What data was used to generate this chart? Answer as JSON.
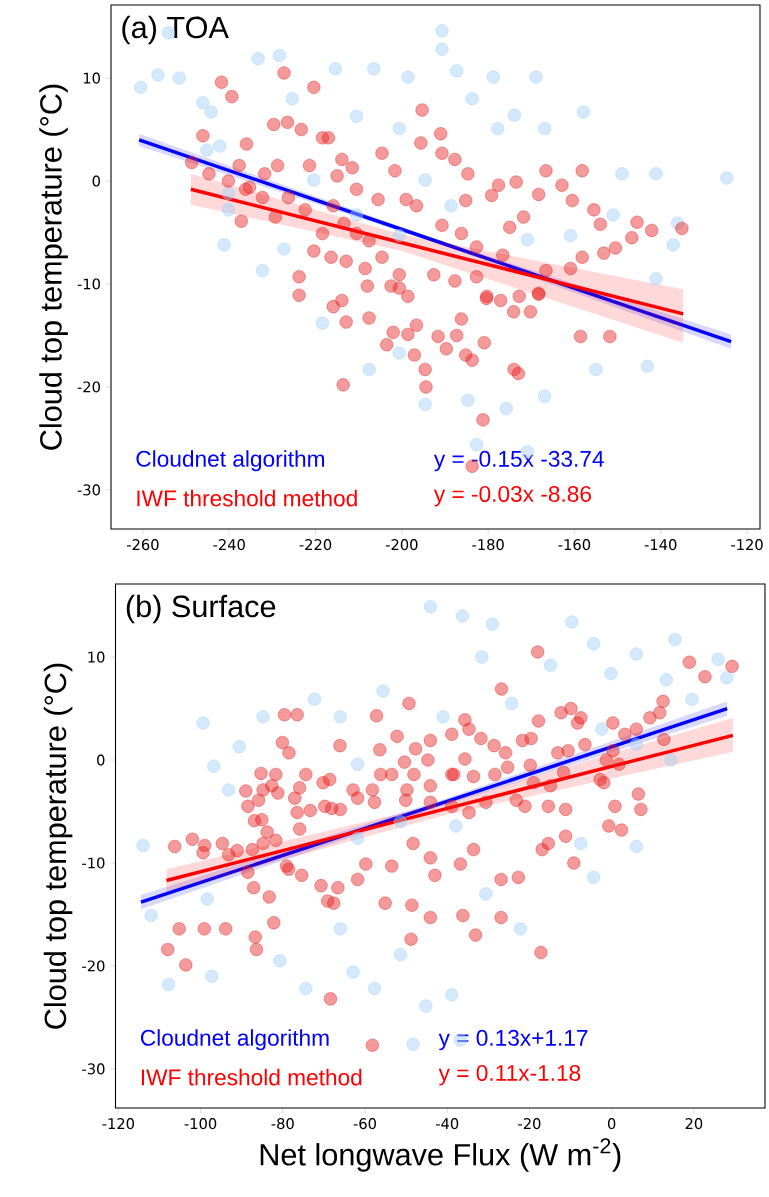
{
  "chart_data": [
    {
      "type": "scatter",
      "title": "(a) TOA",
      "ylabel": "Cloud top temperature (°C)",
      "xlim": [
        -267.4,
        -117
      ],
      "ylim": [
        -33.8,
        17.1
      ],
      "xticks": [
        -260,
        -240,
        -220,
        -200,
        -180,
        -160,
        -140,
        -120
      ],
      "yticks": [
        -30,
        -20,
        -10,
        0,
        10
      ],
      "grid": false,
      "legend": "bottom left",
      "line_style": "solid",
      "annotations": [
        "y = -0.15x -33.74",
        "y = -0.03x -8.86"
      ],
      "series": [
        {
          "marker": "circle",
          "color": "#a0cff8",
          "x": [
            -260.5,
            -256.5,
            -251.6,
            -254.1,
            -244.2,
            -242.2,
            -233.3,
            -228.4,
            -215.4,
            -206.5,
            -198.6,
            -190.7,
            -190.7,
            -187.3,
            -178.8,
            -168.9,
            -183.7,
            -173.9,
            -157.9,
            -166.9,
            -149.0,
            -141.1,
            -124.7,
            -136.1,
            -137.1,
            -141.1,
            -151.0,
            -177.8,
            -200.6,
            -210.5,
            -225.4,
            -246.1,
            -245.2,
            -240.2,
            -240.2,
            -241.2,
            -232.3,
            -227.3,
            -220.4,
            -210.5,
            -200.6,
            -194.6,
            -188.6,
            -170.9,
            -160.9,
            -218.4,
            -207.6,
            -194.6,
            -184.7,
            -175.8,
            -166.9,
            -182.7,
            -155.0,
            -143.1,
            -200.6,
            -170.9
          ],
          "values": [
            9.1,
            10.3,
            10.0,
            14.4,
            6.7,
            3.4,
            11.9,
            12.2,
            10.9,
            10.9,
            10.1,
            14.6,
            12.8,
            10.7,
            10.1,
            10.1,
            8.0,
            6.4,
            6.7,
            5.1,
            0.7,
            0.7,
            0.3,
            -4.1,
            -6.2,
            -9.5,
            -3.3,
            5.1,
            5.1,
            6.3,
            8.0,
            7.6,
            3.0,
            -1.2,
            -2.8,
            -6.2,
            -8.7,
            -6.6,
            0.1,
            -3.3,
            -5.3,
            0.1,
            -2.4,
            -5.7,
            -5.3,
            -13.8,
            -18.3,
            -21.7,
            -21.3,
            -22.1,
            -20.9,
            -25.6,
            -18.3,
            -18.0,
            -16.7,
            -26.3
          ]
        },
        {
          "marker": "circle",
          "color": "#e61e1e",
          "x": [
            -227.3,
            -241.8,
            -239.4,
            -220.4,
            -195.3,
            -246.1,
            -229.7,
            -226.5,
            -223.3,
            -236.0,
            -218.4,
            -217.0,
            -195.6,
            -191.0,
            -204.6,
            -213.9,
            -190.7,
            -187.7,
            -166.6,
            -158.2,
            -184.7,
            -201.6,
            -173.5,
            -162.9,
            -177.6,
            -168.3,
            -185.2,
            -179.2,
            -160.5,
            -155.5,
            -154.0,
            -145.5,
            -142.1,
            -135.1,
            -146.7,
            -150.5,
            -153.2,
            -158.2,
            -160.9,
            -166.6,
            -171.8,
            -175.0,
            -176.6,
            -182.7,
            -186.2,
            -190.7,
            -196.6,
            -199.0,
            -205.5,
            -210.5,
            -211.5,
            -215.0,
            -221.4,
            -228.8,
            -231.8,
            -237.7,
            -244.7,
            -248.7,
            -240.2,
            -236.2,
            -232.3,
            -229.3,
            -226.3,
            -222.4,
            -218.4,
            -215.9,
            -213.4,
            -210.5,
            -207.6,
            -220.4,
            -216.4,
            -212.9,
            -208.5,
            -204.6,
            -200.6,
            -200.6,
            -198.6,
            -223.8,
            -223.8,
            -237.2,
            -235.3,
            -192.6,
            -187.7,
            -182.7,
            -180.3,
            -172.8,
            -168.3,
            -215.9,
            -213.9,
            -212.9,
            -207.6,
            -202.0,
            -203.5,
            -197.1,
            -194.6,
            -194.4,
            -213.6,
            -189.7,
            -185.2,
            -183.7,
            -180.9,
            -174.0,
            -173.0,
            -181.2,
            -183.7,
            -158.6,
            -151.8,
            -180.4,
            -177.1,
            -174.1,
            -170.2,
            -168.3,
            -196.6,
            -198.6,
            -191.6,
            -187.3,
            -186.2,
            -202.5,
            -208.0
          ],
          "values": [
            10.5,
            9.6,
            8.2,
            9.1,
            6.9,
            4.4,
            5.5,
            5.7,
            5.0,
            3.6,
            4.2,
            4.2,
            3.7,
            4.6,
            2.7,
            2.1,
            2.7,
            2.1,
            1.0,
            1.0,
            0.7,
            1.0,
            -0.1,
            -0.4,
            -0.4,
            -1.3,
            -1.9,
            -1.4,
            -1.9,
            -2.8,
            -4.2,
            -4.0,
            -4.8,
            -4.6,
            -5.5,
            -6.5,
            -7.0,
            -7.4,
            -8.5,
            -8.7,
            -3.5,
            -4.5,
            -7.2,
            -6.4,
            -5.1,
            -4.3,
            -2.4,
            -1.8,
            -1.8,
            -0.8,
            1.3,
            0.5,
            1.5,
            1.5,
            0.7,
            1.5,
            0.7,
            1.8,
            0.0,
            -0.8,
            -1.6,
            -3.5,
            -1.6,
            -2.8,
            -5.1,
            -2.4,
            -4.1,
            -5.1,
            -5.8,
            -6.8,
            -7.4,
            -7.8,
            -8.5,
            -7.4,
            -9.1,
            -10.4,
            -11.2,
            -9.3,
            -11.1,
            -3.9,
            -0.6,
            -9.1,
            -9.7,
            -9.3,
            -11.2,
            -11.2,
            -11.0,
            -12.2,
            -11.6,
            -13.7,
            -13.3,
            -14.7,
            -15.9,
            -16.9,
            -18.3,
            -20.0,
            -19.8,
            -16.3,
            -16.9,
            -17.4,
            -15.7,
            -18.3,
            -18.7,
            -23.2,
            -27.7,
            -15.1,
            -15.1,
            -11.4,
            -11.6,
            -12.7,
            -12.7,
            -10.9,
            -14.0,
            -14.9,
            -15.1,
            -15.0,
            -13.4,
            -10.2,
            -10.2
          ]
        },
        {
          "type": "line",
          "marker": "none",
          "name": "Cloudnet algorithm",
          "color": "#0000ff",
          "x": [
            -260.9,
            -192.3,
            -123.7
          ],
          "values": [
            4.0,
            -5.8,
            -15.6
          ],
          "lower": [
            3.4,
            -6.0,
            -16.3
          ],
          "upper": [
            4.6,
            -5.6,
            -14.9
          ]
        },
        {
          "type": "line",
          "marker": "none",
          "name": "IWF threshold method",
          "color": "#ff0000",
          "x": [
            -248.9,
            -200,
            -134.8
          ],
          "values": [
            -0.8,
            -6.0,
            -12.9
          ],
          "lower": [
            -2.3,
            -6.8,
            -15.7
          ],
          "upper": [
            0.7,
            -5.2,
            -10.5
          ]
        }
      ]
    },
    {
      "type": "scatter",
      "title": "(b) Surface",
      "xlabel": "Net longwave Flux (W m$^{-2}$)",
      "ylabel": "Cloud top temperature (°C)",
      "xlim": [
        -120.7,
        37.3
      ],
      "ylim": [
        -33.8,
        17.1
      ],
      "xticks": [
        -120,
        -100,
        -80,
        -60,
        -40,
        -20,
        0,
        20
      ],
      "yticks": [
        -30,
        -20,
        -10,
        0,
        10
      ],
      "grid": false,
      "legend": "bottom left",
      "line_style": "solid",
      "annotations": [
        "y = 0.13x+1.17",
        "y = 0.11x-1.18"
      ],
      "series": [
        {
          "marker": "circle",
          "color": "#a0cff8",
          "x": [
            -44.1,
            -36.3,
            -29.0,
            -9.7,
            -4.4,
            6.0,
            15.4,
            25.9,
            28.0,
            -31.6,
            -14.9,
            -0.2,
            13.3,
            -55.6,
            -72.3,
            -84.8,
            -99.4,
            -90.6,
            -96.8,
            -66.0,
            -41.0,
            -24.3,
            -2.4,
            6.0,
            19.5,
            14.4,
            -61.8,
            -93.2,
            -114.0,
            -112.0,
            -107.8,
            -98.4,
            -97.3,
            -80.7,
            -74.4,
            -62.9,
            -57.7,
            -51.4,
            -45.2,
            -38.9,
            -48.3,
            -36.8,
            -22.2,
            -4.4,
            6.0,
            -66.0,
            -30.6,
            -7.5,
            -51.4,
            -61.8,
            -37.9
          ],
          "values": [
            14.9,
            14.0,
            13.2,
            13.4,
            11.3,
            10.3,
            11.7,
            9.8,
            8.0,
            10.0,
            9.2,
            8.4,
            7.8,
            6.7,
            5.9,
            4.2,
            3.6,
            1.3,
            -0.6,
            4.2,
            4.2,
            5.5,
            3.0,
            1.5,
            5.9,
            0.0,
            -0.4,
            -2.9,
            -8.3,
            -15.1,
            -21.8,
            -13.5,
            -21.0,
            -19.5,
            -22.2,
            -20.6,
            -22.2,
            -18.9,
            -23.9,
            -22.8,
            -27.6,
            -27.2,
            -16.4,
            -11.4,
            -8.4,
            -16.4,
            -13.0,
            -8.1,
            -6.0,
            -7.6,
            -6.4
          ]
        },
        {
          "marker": "circle",
          "color": "#e61e1e",
          "x": [
            -18.0,
            18.9,
            22.7,
            29.3,
            -26.8,
            -49.3,
            -79.6,
            -76.5,
            -57.2,
            -17.8,
            -12.3,
            -9.9,
            -7.5,
            -8.3,
            0.3,
            9.3,
            11.7,
            12.5,
            12.7,
            6.0,
            3.2,
            0.3,
            1.8,
            -6.5,
            -10.6,
            -13.1,
            -19.6,
            -21.7,
            -35.7,
            -34.7,
            -38.9,
            -31.8,
            -28.6,
            -44.1,
            -47.7,
            -52.2,
            -56.4,
            -66.1,
            -80.1,
            -78.5,
            -44.7,
            -35.7,
            -25.8,
            -19.8,
            -25.3,
            -28.4,
            -33.6,
            -38.9,
            -48.1,
            -50.4,
            -53.5,
            -56.2,
            -74.4,
            -81.7,
            -85.3,
            -84.8,
            -82.7,
            -81.2,
            -89.0,
            -88.5,
            -85.9,
            -77.1,
            -75.9,
            -70.2,
            -68.6,
            -62.9,
            -58.2,
            -49.8,
            -44.1,
            -38.4,
            -19.0,
            -14.9,
            -11.7,
            -2.8,
            -1.9,
            -1.3,
            6.5,
            7.1,
            0.8,
            -11.2,
            -15.4,
            -21.1,
            -23.2,
            -30.6,
            -34.7,
            -38.9,
            -44.1,
            -50.1,
            -57.7,
            -61.8,
            -66.0,
            -69.8,
            -73.3,
            -106.3,
            -102.0,
            -99.0,
            -99.4,
            -94.7,
            -93.2,
            -91.1,
            -87.4,
            -84.8,
            -81.7,
            -86.9,
            -85.1,
            -83.8,
            -75.9,
            -76.5,
            -68.1,
            -88.5,
            -87.1,
            -83.3,
            -78.6,
            -79.1,
            -75.4,
            -70.7,
            -67.6,
            -69.1,
            -66.6,
            -59.8,
            -53.5,
            -61.8,
            -55.1,
            -48.6,
            -43.0,
            -36.8,
            -36.2,
            -26.9,
            -26.9,
            -22.7,
            -16.9,
            -11.2,
            -9.2,
            2.4,
            -0.7,
            -15.4,
            -33.6,
            -48.3,
            -44.1,
            -33.1,
            -44.1,
            -48.8,
            -17.2,
            -93.9,
            -99.1,
            -105.2,
            -108.0,
            -103.6,
            -86.4,
            -86.7,
            -82.2,
            -68.4,
            -58.2
          ],
          "values": [
            10.5,
            9.5,
            8.1,
            9.1,
            6.9,
            5.5,
            4.4,
            4.4,
            4.3,
            3.8,
            4.6,
            5.0,
            4.1,
            3.6,
            3.6,
            4.1,
            4.6,
            5.7,
            2.0,
            3.0,
            2.5,
            0.9,
            -0.4,
            1.5,
            0.9,
            0.7,
            2.1,
            1.9,
            3.9,
            3.0,
            2.5,
            2.1,
            1.4,
            1.9,
            1.1,
            2.3,
            1.0,
            1.4,
            1.7,
            0.7,
            0.0,
            0.1,
            0.7,
            -0.5,
            -0.7,
            -1.4,
            -1.6,
            -1.4,
            -1.4,
            -0.2,
            -1.4,
            -1.4,
            -1.4,
            -1.4,
            -1.3,
            -2.9,
            -2.5,
            -3.2,
            -3.0,
            -4.5,
            -3.9,
            -3.7,
            -2.7,
            -2.2,
            -1.9,
            -2.9,
            -2.9,
            -2.9,
            -2.5,
            -1.4,
            -2.2,
            -2.5,
            -1.2,
            -1.9,
            -2.2,
            0.0,
            -3.3,
            -4.8,
            -4.5,
            -4.8,
            -4.5,
            -4.5,
            -3.9,
            -4.1,
            -5.1,
            -4.5,
            -4.1,
            -3.9,
            -4.1,
            -3.7,
            -4.8,
            -4.5,
            -4.9,
            -8.4,
            -7.7,
            -8.3,
            -9.0,
            -8.1,
            -9.2,
            -8.8,
            -8.7,
            -8.1,
            -7.8,
            -5.9,
            -5.8,
            -7.0,
            -6.7,
            -5.1,
            -4.7,
            -10.9,
            -12.4,
            -13.3,
            -10.6,
            -10.3,
            -11.2,
            -12.2,
            -13.9,
            -13.7,
            -12.4,
            -10.1,
            -10.3,
            -11.6,
            -13.9,
            -14.1,
            -11.2,
            -10.1,
            -15.1,
            -15.3,
            -11.6,
            -11.4,
            -8.7,
            -7.4,
            -10.0,
            -6.8,
            -6.4,
            -8.1,
            -8.7,
            -8.1,
            -9.5,
            -17.0,
            -15.3,
            -17.4,
            -18.7,
            -16.4,
            -16.4,
            -16.4,
            -18.4,
            -19.9,
            -18.4,
            -17.2,
            -15.8,
            -23.2,
            -27.7
          ]
        },
        {
          "type": "line",
          "marker": "none",
          "name": "Cloudnet algorithm",
          "color": "#0000ff",
          "x": [
            -114.5,
            -43,
            28.1
          ],
          "values": [
            -13.8,
            -4.4,
            5.0
          ],
          "lower": [
            -14.5,
            -4.7,
            4.3
          ],
          "upper": [
            -13.1,
            -4.1,
            5.7
          ]
        },
        {
          "type": "line",
          "marker": "none",
          "name": "IWF threshold method",
          "color": "#ff0000",
          "x": [
            -108.3,
            -40,
            29.5
          ],
          "values": [
            -11.7,
            -4.7,
            2.4
          ],
          "lower": [
            -12.8,
            -5.3,
            0.8
          ],
          "upper": [
            -10.6,
            -4.1,
            4.1
          ]
        }
      ]
    }
  ]
}
